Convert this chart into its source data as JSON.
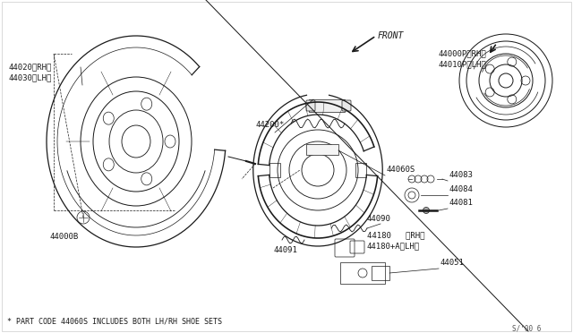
{
  "bg_color": "#ffffff",
  "line_color": "#1a1a1a",
  "footnote": "* PART CODE 44060S INCLUDES BOTH LH/RH SHOE SETS",
  "watermark": "S/’00 6",
  "parts": {
    "44020RH_44030LH": {
      "label": "44020（RH）\n44030（LH）"
    },
    "44000B": {
      "label": "44000B"
    },
    "44200": {
      "label": "44200*"
    },
    "44060S": {
      "label": "44060S"
    },
    "44083": {
      "label": "44083"
    },
    "44084": {
      "label": "44084"
    },
    "44081": {
      "label": "44081"
    },
    "44090": {
      "label": "44090"
    },
    "44091": {
      "label": "44091"
    },
    "44180RH": {
      "label": "44180   （RH）"
    },
    "44180ALH": {
      "label": "44180+A（LH）"
    },
    "44051": {
      "label": "44051"
    },
    "44000P": {
      "label": "44000P（RH）\n44010P（LH）"
    }
  },
  "lw_main": 0.9,
  "lw_thin": 0.5,
  "fontsize": 6.5
}
